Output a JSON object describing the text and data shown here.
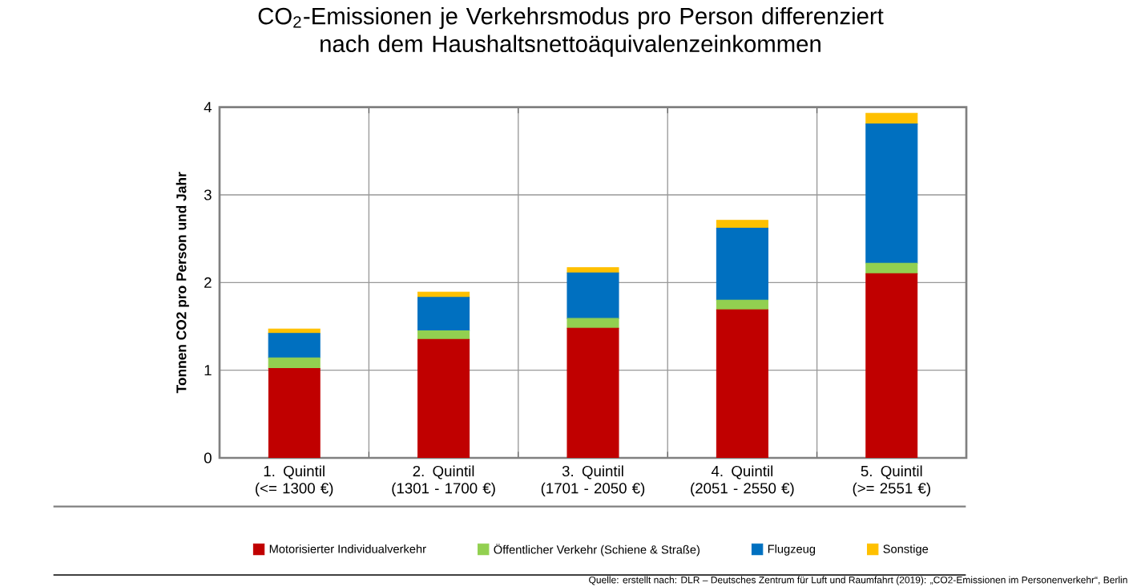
{
  "chart_data": {
    "type": "bar",
    "stacked": true,
    "title": "CO$_{2}$-Emissionen je Verkehrsmodus pro Person differenziert nach dem Haushaltsnettoäquivalenzeinkommen",
    "ylabel": "Tonnen CO2 pro Person und Jahr",
    "categories": [
      "1. Quintil (<= 1300 €)",
      "2. Quintil (1301 - 1700 €)",
      "3. Quintil (1701 - 2050 €)",
      "4. Quintil (2051 - 2550 €)",
      "5. Quintil (>= 2551 €)"
    ],
    "series": [
      {
        "name": "Motorisierter Individualverkehr",
        "color": "#c00000",
        "values": [
          1.02,
          1.35,
          1.48,
          1.69,
          2.1
        ]
      },
      {
        "name": "Öffentlicher Verkehr (Schiene & Straße)",
        "color": "#92d050",
        "values": [
          0.12,
          0.1,
          0.11,
          0.11,
          0.12
        ]
      },
      {
        "name": "Flugzeug",
        "color": "#0070c0",
        "values": [
          0.28,
          0.38,
          0.52,
          0.82,
          1.59
        ]
      },
      {
        "name": "Sonstige",
        "color": "#ffc000",
        "values": [
          0.05,
          0.06,
          0.06,
          0.09,
          0.12
        ]
      }
    ],
    "ylim": [
      0,
      4
    ],
    "yticks": [
      0,
      1,
      2,
      3,
      4
    ],
    "grid": true,
    "legend": "bottom",
    "annotations": [
      "Quelle: erstellt nach: DLR – Deutsches Zentrum für Luft und Raumfahrt (2019): „CO2-Emissionen im Personenverkehr“, Berlin"
    ]
  }
}
